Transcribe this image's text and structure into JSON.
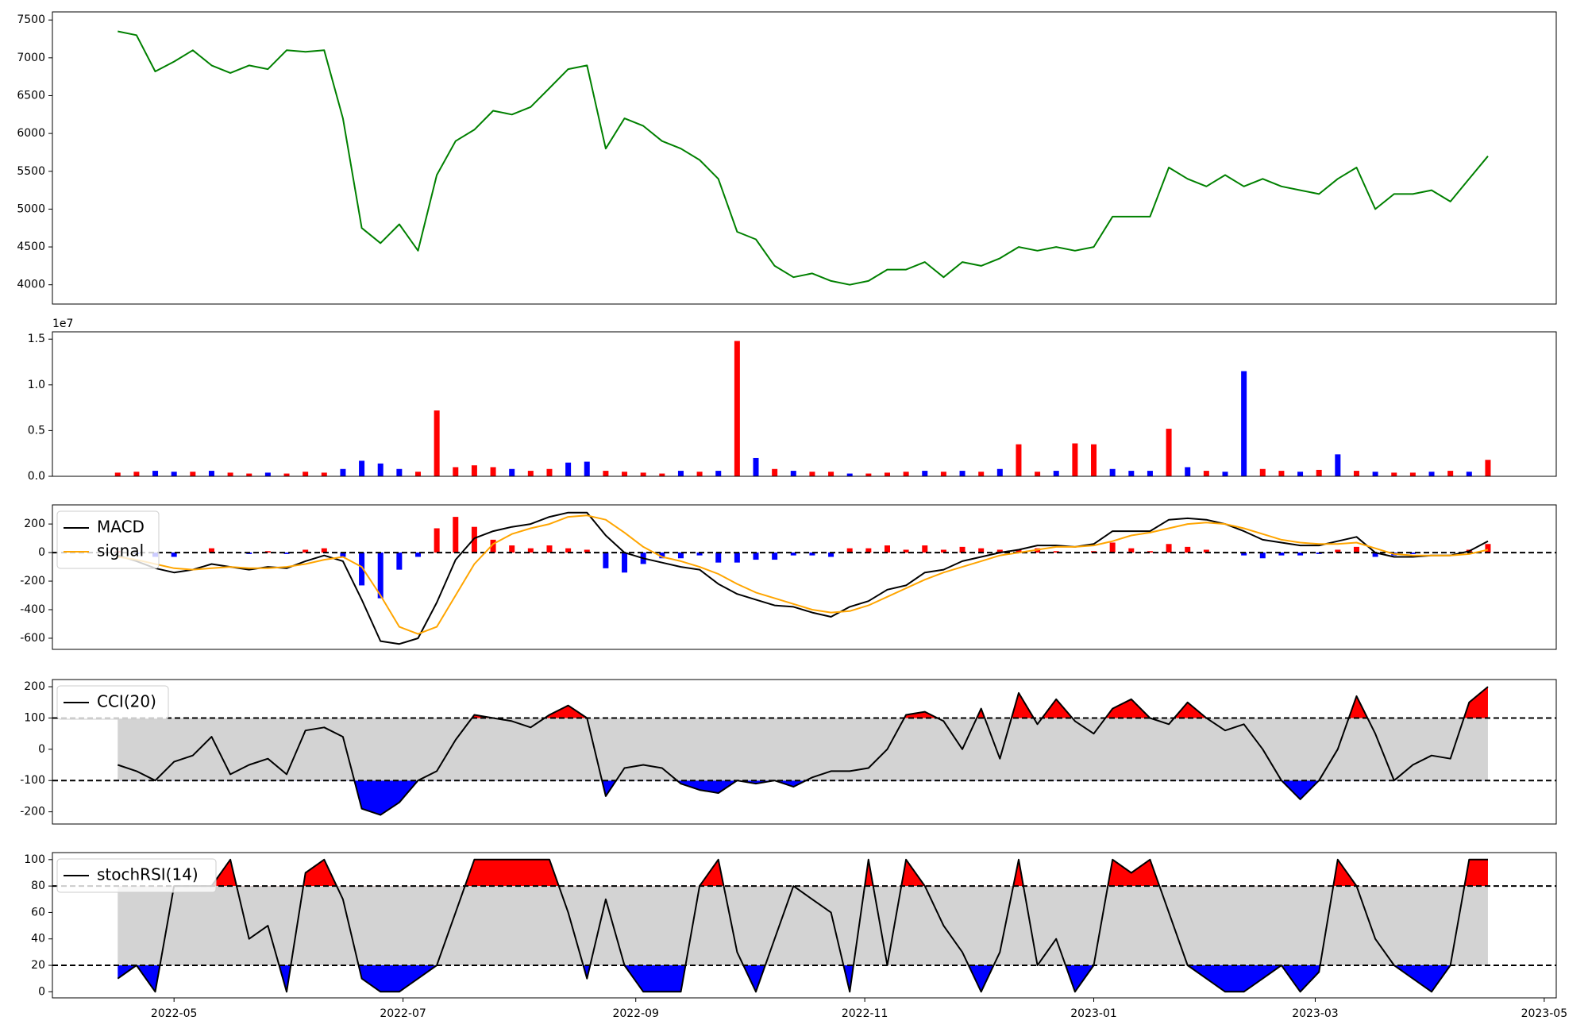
{
  "chart_data": [
    {
      "type": "line",
      "x": [
        19098,
        19103,
        19108,
        19113,
        19118,
        19123,
        19128,
        19133,
        19138,
        19143,
        19148,
        19153,
        19158,
        19163,
        19168,
        19173,
        19178,
        19183,
        19188,
        19193,
        19198,
        19203,
        19208,
        19213,
        19218,
        19223,
        19228,
        19233,
        19238,
        19243,
        19248,
        19253,
        19258,
        19263,
        19268,
        19273,
        19278,
        19283,
        19288,
        19293,
        19298,
        19303,
        19308,
        19313,
        19318,
        19323,
        19328,
        19333,
        19338,
        19343,
        19348,
        19353,
        19358,
        19363,
        19368,
        19373,
        19378,
        19383,
        19388,
        19393,
        19398,
        19403,
        19408,
        19413,
        19418,
        19423,
        19428,
        19433,
        19438,
        19443,
        19448,
        19453,
        19458,
        19463
      ],
      "values": [
        7350,
        7300,
        6820,
        6950,
        7100,
        6900,
        6800,
        6900,
        6850,
        7100,
        7080,
        7100,
        6200,
        4750,
        4550,
        4800,
        4450,
        5450,
        5900,
        6050,
        6300,
        6250,
        6350,
        6600,
        6850,
        6900,
        5800,
        6200,
        6100,
        5900,
        5800,
        5650,
        5400,
        4700,
        4600,
        4250,
        4100,
        4150,
        4050,
        4000,
        4050,
        4200,
        4200,
        4300,
        4100,
        4300,
        4250,
        4350,
        4500,
        4450,
        4500,
        4450,
        4500,
        4900,
        4900,
        4900,
        5550,
        5400,
        5300,
        5450,
        5300,
        5400,
        5300,
        5250,
        5200,
        5400,
        5550,
        5000,
        5200,
        5200,
        5250,
        5100,
        5400,
        5700
      ],
      "color": "green",
      "xlim": [
        19080.6,
        19481.2
      ],
      "ylim": [
        3745,
        7607
      ],
      "yticks": [
        4000,
        4500,
        5000,
        5500,
        6000,
        6500,
        7000,
        7500
      ]
    },
    {
      "type": "bar",
      "x": [
        19098,
        19103,
        19108,
        19113,
        19118,
        19123,
        19128,
        19133,
        19138,
        19143,
        19148,
        19153,
        19158,
        19163,
        19168,
        19173,
        19178,
        19183,
        19188,
        19193,
        19198,
        19203,
        19208,
        19213,
        19218,
        19223,
        19228,
        19233,
        19238,
        19243,
        19248,
        19253,
        19258,
        19263,
        19268,
        19273,
        19278,
        19283,
        19288,
        19293,
        19298,
        19303,
        19308,
        19313,
        19318,
        19323,
        19328,
        19333,
        19338,
        19343,
        19348,
        19353,
        19358,
        19363,
        19368,
        19373,
        19378,
        19383,
        19388,
        19393,
        19398,
        19403,
        19408,
        19413,
        19418,
        19423,
        19428,
        19433,
        19438,
        19443,
        19448,
        19453,
        19458,
        19463
      ],
      "values": [
        0.04,
        0.05,
        0.06,
        0.05,
        0.05,
        0.06,
        0.04,
        0.03,
        0.04,
        0.03,
        0.05,
        0.04,
        0.08,
        0.17,
        0.14,
        0.08,
        0.05,
        0.72,
        0.1,
        0.12,
        0.1,
        0.08,
        0.06,
        0.08,
        0.15,
        0.16,
        0.06,
        0.05,
        0.04,
        0.03,
        0.06,
        0.05,
        0.06,
        1.48,
        0.2,
        0.08,
        0.06,
        0.05,
        0.05,
        0.03,
        0.03,
        0.04,
        0.05,
        0.06,
        0.05,
        0.06,
        0.05,
        0.08,
        0.35,
        0.05,
        0.06,
        0.36,
        0.35,
        0.08,
        0.06,
        0.06,
        0.52,
        0.1,
        0.06,
        0.05,
        1.15,
        0.08,
        0.06,
        0.05,
        0.07,
        0.24,
        0.06,
        0.05,
        0.04,
        0.04,
        0.05,
        0.06,
        0.05,
        0.18
      ],
      "colors": [
        "red",
        "red",
        "blue",
        "blue",
        "red",
        "blue",
        "red",
        "red",
        "blue",
        "red",
        "red",
        "red",
        "blue",
        "blue",
        "blue",
        "blue",
        "red",
        "red",
        "red",
        "red",
        "red",
        "blue",
        "red",
        "red",
        "blue",
        "blue",
        "red",
        "red",
        "red",
        "red",
        "blue",
        "red",
        "blue",
        "red",
        "blue",
        "red",
        "blue",
        "red",
        "red",
        "blue",
        "red",
        "red",
        "red",
        "blue",
        "red",
        "blue",
        "red",
        "blue",
        "red",
        "red",
        "blue",
        "red",
        "red",
        "blue",
        "blue",
        "blue",
        "red",
        "blue",
        "red",
        "blue",
        "blue",
        "red",
        "red",
        "blue",
        "red",
        "blue",
        "red",
        "blue",
        "red",
        "red",
        "blue",
        "red",
        "blue",
        "red"
      ],
      "xlim": [
        19080.6,
        19481.2
      ],
      "ylim": [
        0,
        1.58
      ],
      "yticks": [
        {
          "value": 0,
          "label": "0.0"
        },
        0.5,
        {
          "value": 1,
          "label": "1.0"
        },
        1.5
      ],
      "offset_label": "1e7"
    },
    {
      "type": "macd",
      "x": [
        19098,
        19103,
        19108,
        19113,
        19118,
        19123,
        19128,
        19133,
        19138,
        19143,
        19148,
        19153,
        19158,
        19163,
        19168,
        19173,
        19178,
        19183,
        19188,
        19193,
        19198,
        19203,
        19208,
        19213,
        19218,
        19223,
        19228,
        19233,
        19238,
        19243,
        19248,
        19253,
        19258,
        19263,
        19268,
        19273,
        19278,
        19283,
        19288,
        19293,
        19298,
        19303,
        19308,
        19313,
        19318,
        19323,
        19328,
        19333,
        19338,
        19343,
        19348,
        19353,
        19358,
        19363,
        19368,
        19373,
        19378,
        19383,
        19388,
        19393,
        19398,
        19403,
        19408,
        19413,
        19418,
        19423,
        19428,
        19433,
        19438,
        19443,
        19448,
        19453,
        19458,
        19463
      ],
      "series": [
        {
          "name": "MACD",
          "color": "black",
          "values": [
            -20,
            -60,
            -110,
            -140,
            -120,
            -80,
            -100,
            -120,
            -100,
            -110,
            -60,
            -20,
            -60,
            -330,
            -620,
            -640,
            -600,
            -350,
            -50,
            100,
            150,
            180,
            200,
            250,
            280,
            280,
            120,
            0,
            -40,
            -70,
            -100,
            -120,
            -220,
            -290,
            -330,
            -370,
            -380,
            -420,
            -450,
            -380,
            -340,
            -260,
            -230,
            -140,
            -120,
            -60,
            -30,
            0,
            20,
            50,
            50,
            40,
            60,
            150,
            150,
            150,
            230,
            240,
            230,
            200,
            150,
            90,
            70,
            50,
            50,
            80,
            110,
            0,
            -30,
            -30,
            -20,
            -20,
            10,
            80
          ]
        },
        {
          "name": "signal",
          "color": "orange",
          "values": [
            -30,
            -50,
            -80,
            -110,
            -120,
            -110,
            -100,
            -110,
            -110,
            -100,
            -80,
            -50,
            -30,
            -100,
            -300,
            -520,
            -570,
            -520,
            -300,
            -80,
            60,
            130,
            170,
            200,
            250,
            260,
            230,
            140,
            40,
            -30,
            -60,
            -100,
            -150,
            -220,
            -280,
            -320,
            -360,
            -400,
            -420,
            -410,
            -370,
            -310,
            -250,
            -190,
            -140,
            -100,
            -60,
            -20,
            0,
            20,
            40,
            40,
            50,
            80,
            120,
            140,
            170,
            200,
            210,
            200,
            170,
            130,
            90,
            70,
            60,
            60,
            70,
            30,
            -10,
            -20,
            -20,
            -20,
            -10,
            20
          ]
        }
      ],
      "histogram": {
        "values": [
          10,
          -10,
          -30,
          -30,
          0,
          30,
          0,
          -10,
          10,
          -10,
          20,
          30,
          -30,
          -230,
          -320,
          -120,
          -30,
          170,
          250,
          180,
          90,
          50,
          30,
          50,
          30,
          20,
          -110,
          -140,
          -80,
          -40,
          -40,
          -20,
          -70,
          -70,
          -50,
          -50,
          -20,
          -20,
          -30,
          30,
          30,
          50,
          20,
          50,
          20,
          40,
          30,
          20,
          20,
          30,
          10,
          0,
          10,
          70,
          30,
          10,
          60,
          40,
          20,
          0,
          -20,
          -40,
          -20,
          -20,
          -10,
          20,
          40,
          -30,
          -20,
          -10,
          0,
          0,
          20,
          60
        ],
        "positive_color": "red",
        "negative_color": "blue"
      },
      "hline": 0,
      "legend": "upper left",
      "xlim": [
        19080.6,
        19481.2
      ],
      "ylim": [
        -678,
        334
      ],
      "yticks": [
        -600,
        -400,
        -200,
        0,
        200
      ]
    },
    {
      "type": "oscillator",
      "x": [
        19098,
        19103,
        19108,
        19113,
        19118,
        19123,
        19128,
        19133,
        19138,
        19143,
        19148,
        19153,
        19158,
        19163,
        19168,
        19173,
        19178,
        19183,
        19188,
        19193,
        19198,
        19203,
        19208,
        19213,
        19218,
        19223,
        19228,
        19233,
        19238,
        19243,
        19248,
        19253,
        19258,
        19263,
        19268,
        19273,
        19278,
        19283,
        19288,
        19293,
        19298,
        19303,
        19308,
        19313,
        19318,
        19323,
        19328,
        19333,
        19338,
        19343,
        19348,
        19353,
        19358,
        19363,
        19368,
        19373,
        19378,
        19383,
        19388,
        19393,
        19398,
        19403,
        19408,
        19413,
        19418,
        19423,
        19428,
        19433,
        19438,
        19443,
        19448,
        19453,
        19458,
        19463
      ],
      "series": [
        {
          "name": "CCI(20)",
          "color": "black",
          "values": [
            -50,
            -70,
            -100,
            -40,
            -20,
            40,
            -80,
            -50,
            -30,
            -80,
            60,
            70,
            40,
            -190,
            -210,
            -170,
            -100,
            -70,
            30,
            110,
            100,
            90,
            70,
            110,
            140,
            100,
            -150,
            -60,
            -50,
            -60,
            -110,
            -130,
            -140,
            -100,
            -110,
            -100,
            -120,
            -90,
            -70,
            -70,
            -60,
            0,
            110,
            120,
            90,
            0,
            130,
            -30,
            180,
            80,
            160,
            90,
            50,
            130,
            160,
            100,
            80,
            150,
            100,
            60,
            80,
            0,
            -100,
            -160,
            -100,
            0,
            170,
            50,
            -100,
            -50,
            -20,
            -30,
            150,
            200
          ]
        }
      ],
      "thresholds": [
        100,
        -100
      ],
      "above_color": "red",
      "below_color": "blue",
      "band_color": "lightgrey",
      "legend": "upper left",
      "xlim": [
        19080.6,
        19481.2
      ],
      "ylim": [
        -239,
        223
      ],
      "yticks": [
        -200,
        -100,
        0,
        100,
        200
      ]
    },
    {
      "type": "oscillator",
      "x": [
        19098,
        19103,
        19108,
        19113,
        19118,
        19123,
        19128,
        19133,
        19138,
        19143,
        19148,
        19153,
        19158,
        19163,
        19168,
        19173,
        19178,
        19183,
        19188,
        19193,
        19198,
        19203,
        19208,
        19213,
        19218,
        19223,
        19228,
        19233,
        19238,
        19243,
        19248,
        19253,
        19258,
        19263,
        19268,
        19273,
        19278,
        19283,
        19288,
        19293,
        19298,
        19303,
        19308,
        19313,
        19318,
        19323,
        19328,
        19333,
        19338,
        19343,
        19348,
        19353,
        19358,
        19363,
        19368,
        19373,
        19378,
        19383,
        19388,
        19393,
        19398,
        19403,
        19408,
        19413,
        19418,
        19423,
        19428,
        19433,
        19438,
        19443,
        19448,
        19453,
        19458,
        19463
      ],
      "series": [
        {
          "name": "stochRSI(14)",
          "color": "black",
          "values": [
            10,
            20,
            0,
            80,
            80,
            80,
            100,
            40,
            50,
            0,
            90,
            100,
            70,
            10,
            0,
            0,
            10,
            20,
            60,
            100,
            100,
            100,
            100,
            100,
            60,
            10,
            70,
            20,
            0,
            0,
            0,
            80,
            100,
            30,
            0,
            40,
            80,
            70,
            60,
            0,
            100,
            20,
            100,
            80,
            50,
            30,
            0,
            30,
            100,
            20,
            40,
            0,
            20,
            100,
            90,
            100,
            60,
            20,
            10,
            0,
            0,
            10,
            20,
            0,
            15,
            100,
            80,
            40,
            20,
            10,
            0,
            20,
            100,
            100
          ]
        }
      ],
      "thresholds": [
        80,
        20
      ],
      "above_color": "red",
      "below_color": "blue",
      "band_color": "lightgrey",
      "legend": "upper left",
      "xlim": [
        19080.6,
        19481.2
      ],
      "ylim": [
        -4.6,
        105.3
      ],
      "yticks": [
        0,
        20,
        40,
        60,
        80,
        100
      ],
      "xticks": [
        {
          "value": 19113,
          "label": "2022-05"
        },
        {
          "value": 19174,
          "label": "2022-07"
        },
        {
          "value": 19236,
          "label": "2022-09"
        },
        {
          "value": 19297,
          "label": "2022-11"
        },
        {
          "value": 19358,
          "label": "2023-01"
        },
        {
          "value": 19417,
          "label": "2023-03"
        },
        {
          "value": 19478,
          "label": "2023-05"
        }
      ]
    }
  ]
}
